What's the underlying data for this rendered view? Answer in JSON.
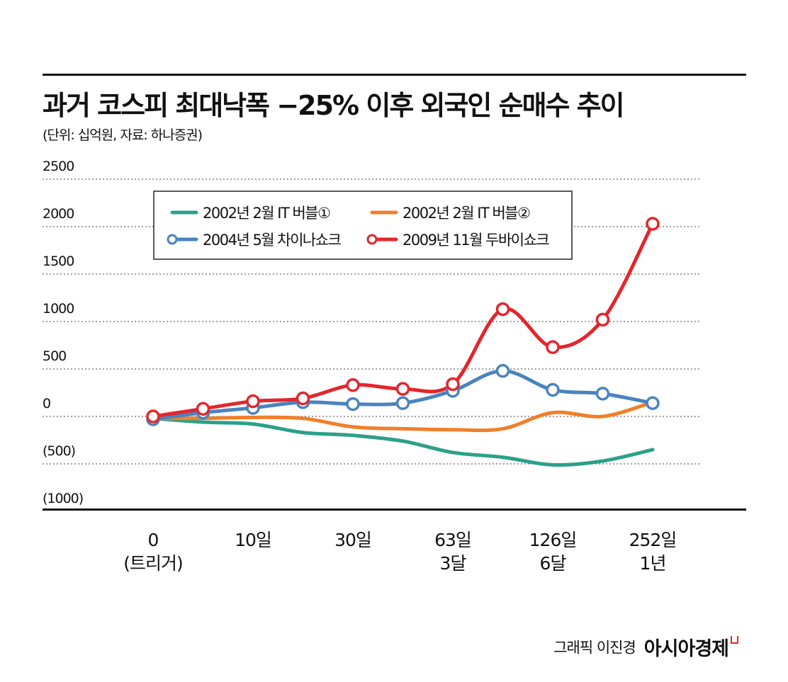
{
  "title": "과거 코스피 최대낙폭 −25% 이후 외국인 순매수 추이",
  "subtitle": "(단위: 십억원, 자료: 하나증권)",
  "credit": {
    "graphic": "그래픽 이진경",
    "brand": "아시아경제"
  },
  "chart_data": {
    "type": "line",
    "y_ticks": [
      "2500",
      "2000",
      "1500",
      "1000",
      "500",
      "0",
      "(500)",
      "(1000)"
    ],
    "ylim": [
      -1000,
      2500
    ],
    "grid": "dotted horizontal",
    "legend_position": "top-left inside",
    "x_ticks": [
      {
        "position": 0,
        "label": "0",
        "sublabel": "(트리거)"
      },
      {
        "position": 2,
        "label": "10일",
        "sublabel": ""
      },
      {
        "position": 4,
        "label": "30일",
        "sublabel": ""
      },
      {
        "position": 6,
        "label": "63일",
        "sublabel": "3달"
      },
      {
        "position": 8,
        "label": "126일",
        "sublabel": "6달"
      },
      {
        "position": 10,
        "label": "252일",
        "sublabel": "1년"
      }
    ],
    "series": [
      {
        "name": "2002년 2월 IT 버블①",
        "color": "#2ba08a",
        "markers": false,
        "points": [
          [
            0,
            -20
          ],
          [
            1,
            -60
          ],
          [
            2,
            -80
          ],
          [
            3,
            -170
          ],
          [
            4,
            -200
          ],
          [
            5,
            -260
          ],
          [
            6,
            -380
          ],
          [
            7,
            -430
          ],
          [
            8,
            -510
          ],
          [
            9,
            -470
          ],
          [
            10,
            -350
          ]
        ]
      },
      {
        "name": "2002년 2월 IT 버블②",
        "color": "#f07f2a",
        "markers": false,
        "points": [
          [
            0,
            -20
          ],
          [
            1,
            -20
          ],
          [
            2,
            -10
          ],
          [
            3,
            -20
          ],
          [
            4,
            -110
          ],
          [
            5,
            -130
          ],
          [
            6,
            -140
          ],
          [
            7,
            -130
          ],
          [
            8,
            40
          ],
          [
            9,
            0
          ],
          [
            10,
            150
          ]
        ]
      },
      {
        "name": "2004년 5월 차이나쇼크",
        "color": "#4a83bf",
        "markers": true,
        "points": [
          [
            0,
            -30
          ],
          [
            1,
            40
          ],
          [
            2,
            90
          ],
          [
            3,
            150
          ],
          [
            4,
            130
          ],
          [
            5,
            140
          ],
          [
            6,
            270
          ],
          [
            7,
            480
          ],
          [
            8,
            280
          ],
          [
            9,
            240
          ],
          [
            10,
            140
          ]
        ]
      },
      {
        "name": "2009년 11월 두바이쇼크",
        "color": "#e3262c",
        "markers": true,
        "points": [
          [
            0,
            0
          ],
          [
            1,
            80
          ],
          [
            2,
            160
          ],
          [
            3,
            190
          ],
          [
            4,
            330
          ],
          [
            5,
            290
          ],
          [
            6,
            340
          ],
          [
            7,
            1130
          ],
          [
            8,
            730
          ],
          [
            9,
            1020
          ],
          [
            10,
            2030
          ]
        ]
      }
    ]
  }
}
